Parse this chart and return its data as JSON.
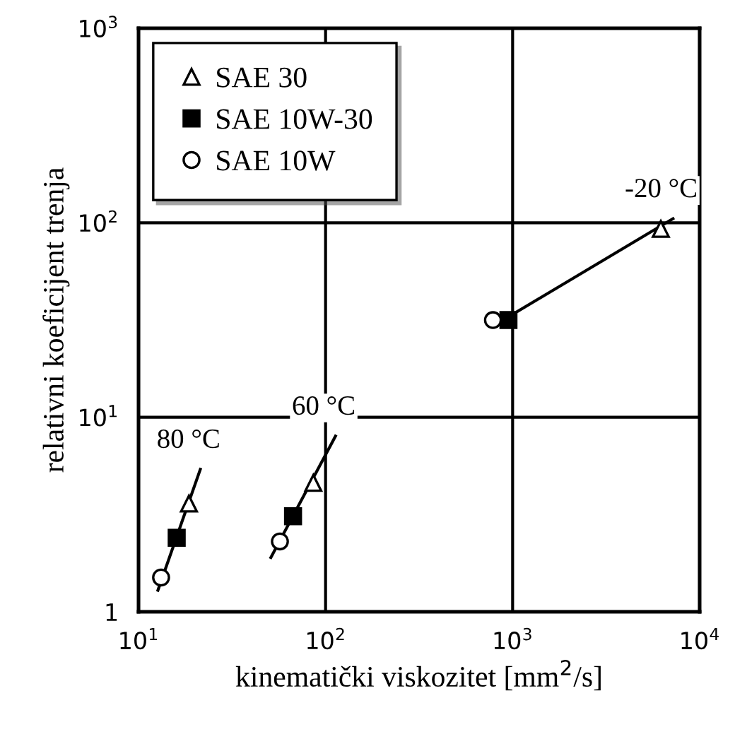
{
  "chart_data": {
    "type": "scatter",
    "xlabel": "kinematički viskozitet [mm$^{2}$/s]",
    "ylabel": "relativni koeficijent trenja",
    "log": "xy",
    "grid": true,
    "legend": "top left",
    "xlim": [
      10,
      10000
    ],
    "ylim": [
      1,
      1000
    ],
    "xticks": [
      {
        "value": 10,
        "label": "10$^{1}$"
      },
      {
        "value": 100,
        "label": "10$^{2}$"
      },
      {
        "value": 1000,
        "label": "10$^{3}$"
      },
      {
        "value": 10000,
        "label": "10$^{4}$"
      }
    ],
    "yticks": [
      1,
      {
        "value": 10,
        "label": "10$^{1}$"
      },
      {
        "value": 100,
        "label": "10$^{2}$"
      },
      {
        "value": 1000,
        "label": "10$^{3}$"
      }
    ],
    "series": [
      {
        "name": "SAE 30",
        "marker": "triangle",
        "color": "#000000",
        "x": [
          18.6,
          86,
          6200
        ],
        "values": [
          3.6,
          4.6,
          93
        ]
      },
      {
        "name": "SAE 10W-30",
        "marker": "square",
        "color": "#000000",
        "x": [
          16,
          67,
          950
        ],
        "values": [
          2.4,
          3.1,
          31.6
        ]
      },
      {
        "name": "SAE 10W",
        "marker": "circle",
        "color": "#000000",
        "x": [
          13.2,
          57,
          785
        ],
        "values": [
          1.5,
          2.3,
          31.6
        ]
      },
      {
        "type": "line",
        "color": "#000000",
        "x": [
          12.7,
          21.4
        ],
        "values": [
          1.29,
          5.4
        ]
      },
      {
        "type": "line",
        "color": "#000000",
        "x": [
          51,
          113
        ],
        "values": [
          1.9,
          8.0
        ]
      },
      {
        "type": "line",
        "color": "#000000",
        "x": [
          860,
          7200
        ],
        "values": [
          31,
          105
        ]
      }
    ],
    "annotations": [
      {
        "text": "80 °C",
        "x": 21.4,
        "y": 5.4
      },
      {
        "text": "60 °C",
        "x": 113,
        "y": 8.0
      },
      {
        "text": "-20 °C",
        "x": 7200,
        "y": 105
      }
    ]
  }
}
